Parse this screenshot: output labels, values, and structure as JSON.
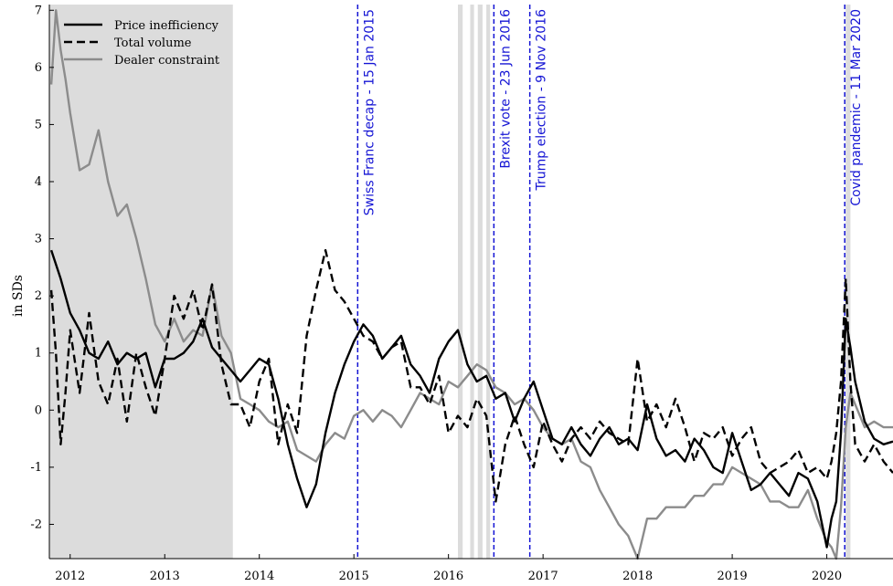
{
  "chart_data": {
    "type": "line",
    "ylabel": "in SDs",
    "xlim": [
      2011.78,
      2020.7
    ],
    "ylim": [
      -2.6,
      7.1
    ],
    "x_ticks": [
      2012,
      2013,
      2014,
      2015,
      2016,
      2017,
      2018,
      2019,
      2020
    ],
    "y_ticks": [
      -2,
      -1,
      0,
      1,
      2,
      3,
      4,
      5,
      6,
      7
    ],
    "grid": false,
    "legend_position": "top-left",
    "colors": {
      "price": "#000000",
      "volume": "#000000",
      "dealer": "#8c8c8c",
      "events": "#1414d4",
      "shade": "#dcdcdc"
    },
    "shaded_regions": [
      {
        "start": 2011.78,
        "end": 2013.72
      },
      {
        "start": 2016.1,
        "end": 2016.15
      },
      {
        "start": 2016.23,
        "end": 2016.27
      },
      {
        "start": 2016.31,
        "end": 2016.36
      },
      {
        "start": 2016.4,
        "end": 2016.44
      },
      {
        "start": 2020.2,
        "end": 2020.25
      }
    ],
    "events": [
      {
        "x": 2015.04,
        "label": "Swiss Franc decap - 15 Jan 2015"
      },
      {
        "x": 2016.48,
        "label": "Brexit vote - 23 Jun 2016"
      },
      {
        "x": 2016.86,
        "label": "Trump election - 9 Nov 2016"
      },
      {
        "x": 2020.19,
        "label": "Covid pandemic - 11 Mar 2020"
      }
    ],
    "series": [
      {
        "name": "Price inefficiency",
        "style": "solid",
        "x": [
          2011.8,
          2011.9,
          2012.0,
          2012.1,
          2012.2,
          2012.3,
          2012.4,
          2012.5,
          2012.6,
          2012.7,
          2012.8,
          2012.9,
          2013.0,
          2013.1,
          2013.2,
          2013.3,
          2013.4,
          2013.5,
          2013.6,
          2013.7,
          2013.8,
          2013.9,
          2014.0,
          2014.1,
          2014.2,
          2014.3,
          2014.4,
          2014.5,
          2014.6,
          2014.7,
          2014.8,
          2014.9,
          2015.0,
          2015.1,
          2015.2,
          2015.3,
          2015.4,
          2015.5,
          2015.6,
          2015.7,
          2015.8,
          2015.9,
          2016.0,
          2016.1,
          2016.2,
          2016.3,
          2016.4,
          2016.5,
          2016.6,
          2016.7,
          2016.8,
          2016.9,
          2017.0,
          2017.1,
          2017.2,
          2017.3,
          2017.4,
          2017.5,
          2017.6,
          2017.7,
          2017.8,
          2017.9,
          2018.0,
          2018.1,
          2018.2,
          2018.3,
          2018.4,
          2018.5,
          2018.6,
          2018.7,
          2018.8,
          2018.9,
          2019.0,
          2019.1,
          2019.2,
          2019.3,
          2019.4,
          2019.5,
          2019.6,
          2019.7,
          2019.8,
          2019.9,
          2020.0,
          2020.05,
          2020.1,
          2020.15,
          2020.2,
          2020.25,
          2020.3,
          2020.4,
          2020.5,
          2020.6,
          2020.7
        ],
        "values": [
          2.8,
          2.3,
          1.7,
          1.4,
          1.0,
          0.9,
          1.2,
          0.8,
          1.0,
          0.9,
          1.0,
          0.4,
          0.9,
          0.9,
          1.0,
          1.2,
          1.6,
          1.1,
          0.9,
          0.7,
          0.5,
          0.7,
          0.9,
          0.8,
          0.2,
          -0.6,
          -1.2,
          -1.7,
          -1.3,
          -0.4,
          0.3,
          0.8,
          1.2,
          1.5,
          1.3,
          0.9,
          1.1,
          1.3,
          0.8,
          0.6,
          0.3,
          0.9,
          1.2,
          1.4,
          0.8,
          0.5,
          0.6,
          0.2,
          0.3,
          -0.2,
          0.2,
          0.5,
          0.0,
          -0.5,
          -0.6,
          -0.3,
          -0.6,
          -0.8,
          -0.5,
          -0.3,
          -0.6,
          -0.5,
          -0.7,
          0.1,
          -0.5,
          -0.8,
          -0.7,
          -0.9,
          -0.5,
          -0.7,
          -1.0,
          -1.1,
          -0.4,
          -0.9,
          -1.4,
          -1.3,
          -1.1,
          -1.3,
          -1.5,
          -1.1,
          -1.2,
          -1.6,
          -2.4,
          -1.9,
          -1.6,
          -0.4,
          1.6,
          1.1,
          0.5,
          -0.2,
          -0.5,
          -0.6,
          -0.55
        ]
      },
      {
        "name": "Total volume",
        "style": "dashed",
        "x": [
          2011.8,
          2011.85,
          2011.9,
          2011.95,
          2012.0,
          2012.1,
          2012.2,
          2012.3,
          2012.4,
          2012.5,
          2012.6,
          2012.7,
          2012.8,
          2012.9,
          2013.0,
          2013.1,
          2013.2,
          2013.3,
          2013.4,
          2013.5,
          2013.6,
          2013.7,
          2013.8,
          2013.9,
          2014.0,
          2014.1,
          2014.2,
          2014.3,
          2014.4,
          2014.5,
          2014.6,
          2014.7,
          2014.8,
          2014.9,
          2015.0,
          2015.1,
          2015.2,
          2015.3,
          2015.4,
          2015.5,
          2015.6,
          2015.7,
          2015.8,
          2015.9,
          2016.0,
          2016.1,
          2016.2,
          2016.3,
          2016.4,
          2016.5,
          2016.6,
          2016.7,
          2016.8,
          2016.9,
          2017.0,
          2017.1,
          2017.2,
          2017.3,
          2017.4,
          2017.5,
          2017.6,
          2017.7,
          2017.8,
          2017.9,
          2018.0,
          2018.1,
          2018.2,
          2018.3,
          2018.4,
          2018.5,
          2018.6,
          2018.7,
          2018.8,
          2018.9,
          2019.0,
          2019.1,
          2019.2,
          2019.3,
          2019.4,
          2019.5,
          2019.6,
          2019.7,
          2019.8,
          2019.9,
          2020.0,
          2020.05,
          2020.1,
          2020.15,
          2020.2,
          2020.25,
          2020.3,
          2020.4,
          2020.5,
          2020.6,
          2020.7
        ],
        "values": [
          2.1,
          1.0,
          -0.6,
          0.3,
          1.4,
          0.3,
          1.7,
          0.5,
          0.1,
          0.9,
          -0.2,
          1.0,
          0.4,
          -0.1,
          0.9,
          2.0,
          1.6,
          2.1,
          1.4,
          2.2,
          0.8,
          0.1,
          0.1,
          -0.3,
          0.5,
          0.9,
          -0.6,
          0.1,
          -0.4,
          1.3,
          2.1,
          2.8,
          2.1,
          1.9,
          1.6,
          1.3,
          1.2,
          0.9,
          1.1,
          1.2,
          0.4,
          0.4,
          0.1,
          0.6,
          -0.4,
          -0.1,
          -0.3,
          0.2,
          -0.1,
          -1.6,
          -0.6,
          -0.1,
          -0.6,
          -1.0,
          -0.2,
          -0.6,
          -0.9,
          -0.5,
          -0.3,
          -0.5,
          -0.2,
          -0.4,
          -0.5,
          -0.6,
          0.9,
          -0.2,
          0.1,
          -0.3,
          0.2,
          -0.3,
          -0.9,
          -0.4,
          -0.5,
          -0.3,
          -0.8,
          -0.5,
          -0.3,
          -0.9,
          -1.1,
          -1.0,
          -0.9,
          -0.7,
          -1.1,
          -1.0,
          -1.2,
          -0.9,
          -0.4,
          0.5,
          2.3,
          0.5,
          -0.6,
          -0.9,
          -0.6,
          -0.9,
          -1.1
        ]
      },
      {
        "name": "Dealer constraint",
        "style": "solid",
        "x": [
          2011.8,
          2011.85,
          2011.9,
          2011.95,
          2012.0,
          2012.1,
          2012.2,
          2012.3,
          2012.4,
          2012.5,
          2012.6,
          2012.7,
          2012.8,
          2012.9,
          2013.0,
          2013.1,
          2013.2,
          2013.3,
          2013.4,
          2013.5,
          2013.6,
          2013.7,
          2013.8,
          2013.9,
          2014.0,
          2014.1,
          2014.2,
          2014.3,
          2014.4,
          2014.5,
          2014.6,
          2014.7,
          2014.8,
          2014.9,
          2015.0,
          2015.1,
          2015.2,
          2015.3,
          2015.4,
          2015.5,
          2015.6,
          2015.7,
          2015.8,
          2015.9,
          2016.0,
          2016.1,
          2016.2,
          2016.3,
          2016.4,
          2016.5,
          2016.6,
          2016.7,
          2016.8,
          2016.9,
          2017.0,
          2017.1,
          2017.2,
          2017.3,
          2017.4,
          2017.5,
          2017.6,
          2017.7,
          2017.8,
          2017.9,
          2018.0,
          2018.1,
          2018.2,
          2018.3,
          2018.4,
          2018.5,
          2018.6,
          2018.7,
          2018.8,
          2018.9,
          2019.0,
          2019.1,
          2019.2,
          2019.3,
          2019.4,
          2019.5,
          2019.6,
          2019.7,
          2019.8,
          2019.9,
          2020.0,
          2020.05,
          2020.1,
          2020.15,
          2020.2,
          2020.25,
          2020.3,
          2020.4,
          2020.5,
          2020.6,
          2020.7
        ],
        "values": [
          5.7,
          7.0,
          6.3,
          5.8,
          5.2,
          4.2,
          4.3,
          4.9,
          4.0,
          3.4,
          3.6,
          3.0,
          2.3,
          1.5,
          1.2,
          1.6,
          1.2,
          1.4,
          1.3,
          2.2,
          1.3,
          1.0,
          0.2,
          0.1,
          0.0,
          -0.2,
          -0.3,
          -0.2,
          -0.7,
          -0.8,
          -0.9,
          -0.6,
          -0.4,
          -0.5,
          -0.1,
          0.0,
          -0.2,
          0.0,
          -0.1,
          -0.3,
          0.0,
          0.3,
          0.2,
          0.1,
          0.5,
          0.4,
          0.6,
          0.8,
          0.7,
          0.4,
          0.3,
          0.1,
          0.2,
          0.0,
          -0.3,
          -0.5,
          -0.6,
          -0.5,
          -0.9,
          -1.0,
          -1.4,
          -1.7,
          -2.0,
          -2.2,
          -2.6,
          -1.9,
          -1.9,
          -1.7,
          -1.7,
          -1.7,
          -1.5,
          -1.5,
          -1.3,
          -1.3,
          -1.0,
          -1.1,
          -1.2,
          -1.3,
          -1.6,
          -1.6,
          -1.7,
          -1.7,
          -1.4,
          -1.9,
          -2.3,
          -2.4,
          -2.6,
          -1.7,
          -0.3,
          0.3,
          0.1,
          -0.3,
          -0.2,
          -0.3,
          -0.3
        ]
      }
    ]
  }
}
